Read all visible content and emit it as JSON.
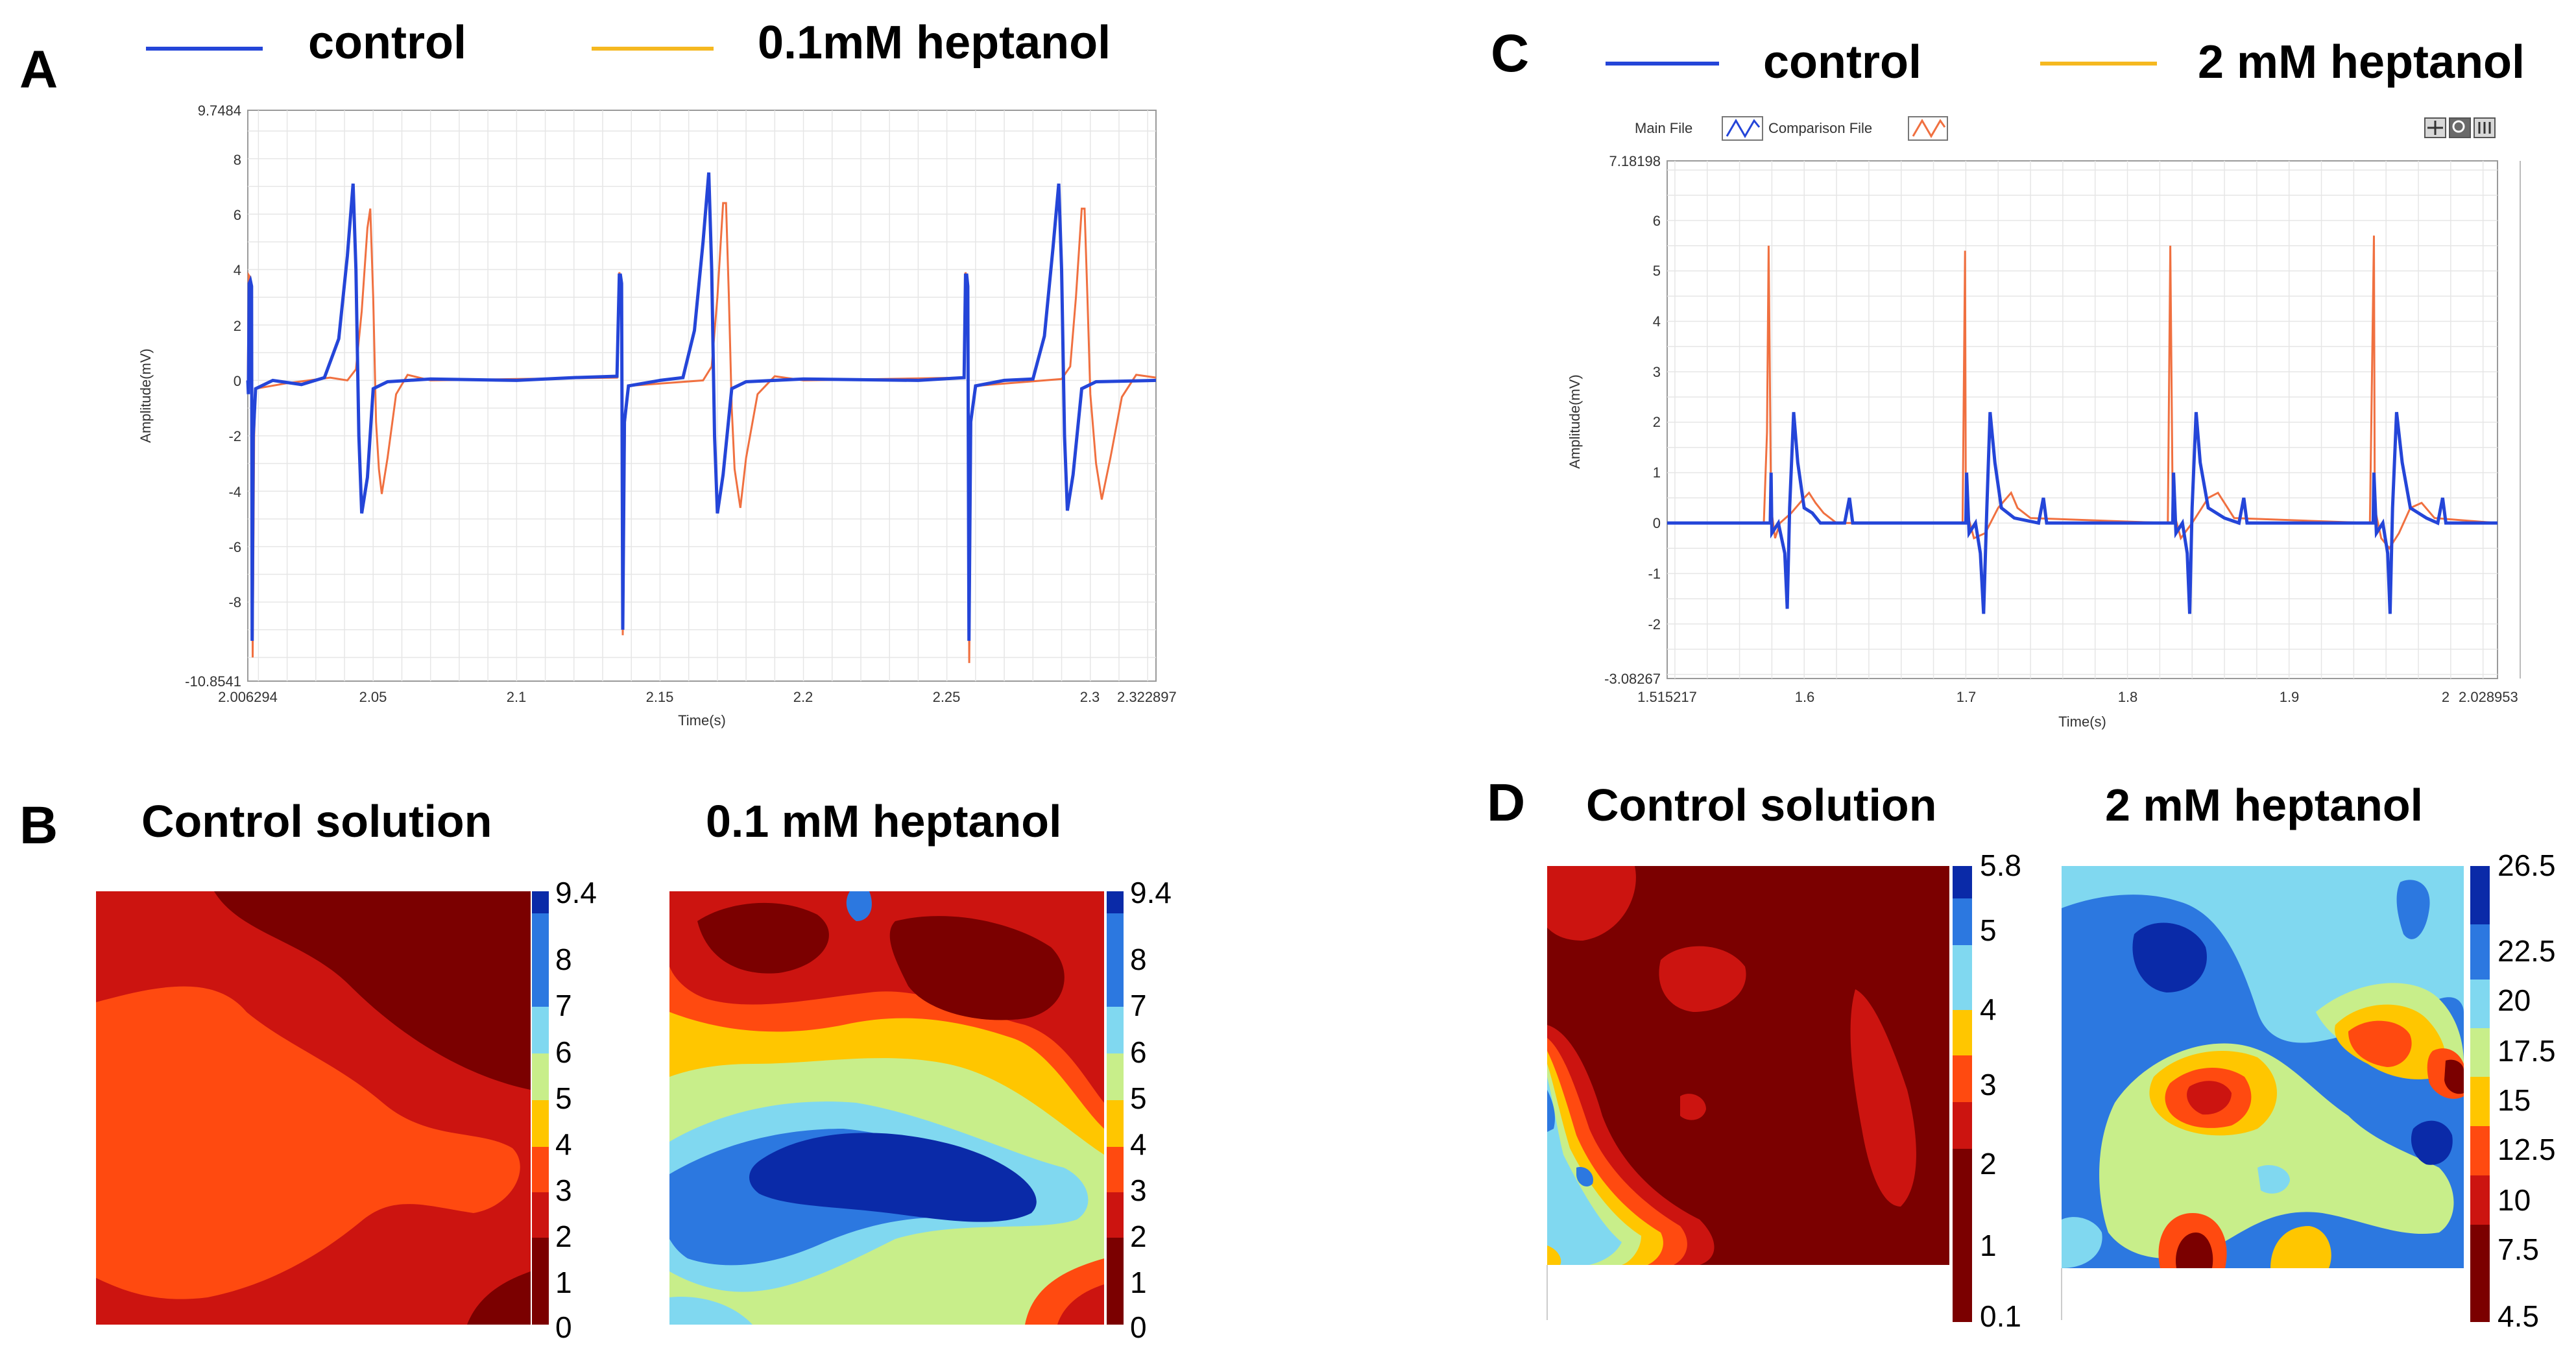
{
  "panels": {
    "A": {
      "letter": "A",
      "legend": [
        {
          "label": "control",
          "color": "#2445d8"
        },
        {
          "label": "0.1mM heptanol",
          "color": "#f5b820"
        }
      ]
    },
    "B": {
      "letter": "B",
      "left_title": "Control solution",
      "right_title": "0.1 mM heptanol",
      "colorbar_ticks": [
        "9.4",
        "8",
        "7",
        "6",
        "5",
        "4",
        "3",
        "2",
        "1",
        "0"
      ]
    },
    "C": {
      "letter": "C",
      "legend": [
        {
          "label": "control",
          "color": "#2445d8"
        },
        {
          "label": "2 mM heptanol",
          "color": "#f5b820"
        }
      ],
      "toolbar": {
        "main_file": "Main File",
        "comparison_file": "Comparison File"
      }
    },
    "D": {
      "letter": "D",
      "left_title": "Control solution",
      "right_title": "2 mM heptanol",
      "left_colorbar_ticks": [
        "5.8",
        "5",
        "4",
        "3",
        "2",
        "1",
        "0.1"
      ],
      "right_colorbar_ticks": [
        "26.5",
        "22.5",
        "20",
        "17.5",
        "15",
        "12.5",
        "10",
        "7.5",
        "4.5"
      ]
    }
  },
  "colors": {
    "control_trace": "#2445d8",
    "heptanol_trace": "#f07040",
    "grid": "#e6e6e6",
    "colormap": [
      "#7b0000",
      "#cc1410",
      "#ff4a10",
      "#ffc600",
      "#c8ee8a",
      "#80d8f0",
      "#2c78e0",
      "#0a2aa8"
    ]
  },
  "chart_data": [
    {
      "type": "line",
      "panel": "A",
      "xlabel": "Time(s)",
      "ylabel": "Amplitude(mV)",
      "xlim": [
        2.006294,
        2.322897
      ],
      "ylim": [
        -10.8541,
        9.7484
      ],
      "x_ticks": [
        "2.006294",
        "2.05",
        "2.1",
        "2.15",
        "2.2",
        "2.25",
        "2.3",
        "2.322897"
      ],
      "y_ticks": [
        "9.7484",
        "8",
        "6",
        "4",
        "2",
        "0",
        "-2",
        "-4",
        "-6",
        "-8",
        "-10.8541"
      ],
      "series": [
        {
          "name": "control",
          "points": [
            [
              2.006294,
              0
            ],
            [
              2.0065,
              -0.5
            ],
            [
              2.0068,
              3.5
            ],
            [
              2.0072,
              3.6
            ],
            [
              2.0076,
              3.4
            ],
            [
              2.0078,
              -9.4
            ],
            [
              2.0082,
              -2
            ],
            [
              2.009,
              -0.3
            ],
            [
              2.015,
              0
            ],
            [
              2.025,
              -0.15
            ],
            [
              2.033,
              0.1
            ],
            [
              2.038,
              1.5
            ],
            [
              2.041,
              4.5
            ],
            [
              2.043,
              7.1
            ],
            [
              2.044,
              4
            ],
            [
              2.045,
              -2
            ],
            [
              2.046,
              -4.8
            ],
            [
              2.048,
              -3.5
            ],
            [
              2.05,
              -0.3
            ],
            [
              2.055,
              -0.05
            ],
            [
              2.07,
              0.05
            ],
            [
              2.1,
              0
            ],
            [
              2.12,
              0.1
            ],
            [
              2.135,
              0.15
            ],
            [
              2.1358,
              3.8
            ],
            [
              2.1362,
              3.8
            ],
            [
              2.1366,
              3.5
            ],
            [
              2.137,
              -9
            ],
            [
              2.1376,
              -1.5
            ],
            [
              2.139,
              -0.2
            ],
            [
              2.15,
              0
            ],
            [
              2.158,
              0.1
            ],
            [
              2.162,
              1.8
            ],
            [
              2.165,
              5
            ],
            [
              2.167,
              7.5
            ],
            [
              2.168,
              4
            ],
            [
              2.169,
              -2
            ],
            [
              2.17,
              -4.8
            ],
            [
              2.172,
              -3.4
            ],
            [
              2.175,
              -0.3
            ],
            [
              2.18,
              -0.05
            ],
            [
              2.2,
              0.05
            ],
            [
              2.24,
              0
            ],
            [
              2.256,
              0.1
            ],
            [
              2.2565,
              3.8
            ],
            [
              2.2569,
              3.8
            ],
            [
              2.2573,
              3.4
            ],
            [
              2.2577,
              -9.4
            ],
            [
              2.2583,
              -1.5
            ],
            [
              2.26,
              -0.2
            ],
            [
              2.27,
              0
            ],
            [
              2.28,
              0.05
            ],
            [
              2.284,
              1.6
            ],
            [
              2.287,
              4.8
            ],
            [
              2.289,
              7.1
            ],
            [
              2.29,
              4
            ],
            [
              2.291,
              -2
            ],
            [
              2.292,
              -4.7
            ],
            [
              2.294,
              -3.4
            ],
            [
              2.297,
              -0.3
            ],
            [
              2.302,
              -0.05
            ],
            [
              2.322897,
              0
            ]
          ]
        },
        {
          "name": "0.1mM heptanol",
          "points": [
            [
              2.006294,
              0
            ],
            [
              2.0066,
              3.8
            ],
            [
              2.0072,
              3.7
            ],
            [
              2.0076,
              3.3
            ],
            [
              2.008,
              -10
            ],
            [
              2.0085,
              -2
            ],
            [
              2.009,
              -0.3
            ],
            [
              2.02,
              -0.1
            ],
            [
              2.035,
              0.1
            ],
            [
              2.041,
              0
            ],
            [
              2.044,
              0.4
            ],
            [
              2.046,
              2.5
            ],
            [
              2.048,
              5.5
            ],
            [
              2.049,
              6.2
            ],
            [
              2.05,
              3
            ],
            [
              2.051,
              -1.5
            ],
            [
              2.052,
              -3.2
            ],
            [
              2.053,
              -4.1
            ],
            [
              2.055,
              -2.8
            ],
            [
              2.058,
              -0.5
            ],
            [
              2.062,
              0.2
            ],
            [
              2.07,
              0
            ],
            [
              2.1,
              0.05
            ],
            [
              2.135,
              0.1
            ],
            [
              2.1358,
              3.9
            ],
            [
              2.1366,
              3.6
            ],
            [
              2.137,
              -9.2
            ],
            [
              2.1378,
              -1.5
            ],
            [
              2.139,
              -0.2
            ],
            [
              2.165,
              0
            ],
            [
              2.168,
              0.5
            ],
            [
              2.17,
              3
            ],
            [
              2.172,
              6.4
            ],
            [
              2.173,
              6.4
            ],
            [
              2.174,
              3
            ],
            [
              2.175,
              -1
            ],
            [
              2.176,
              -3.2
            ],
            [
              2.178,
              -4.6
            ],
            [
              2.18,
              -2.8
            ],
            [
              2.184,
              -0.5
            ],
            [
              2.19,
              0.15
            ],
            [
              2.2,
              0
            ],
            [
              2.256,
              0.1
            ],
            [
              2.2565,
              3.9
            ],
            [
              2.2573,
              3.5
            ],
            [
              2.2578,
              -10.2
            ],
            [
              2.2585,
              -1.5
            ],
            [
              2.26,
              -0.2
            ],
            [
              2.29,
              0.05
            ],
            [
              2.293,
              0.5
            ],
            [
              2.295,
              3
            ],
            [
              2.297,
              6.2
            ],
            [
              2.298,
              6.2
            ],
            [
              2.299,
              3
            ],
            [
              2.3,
              -0.5
            ],
            [
              2.302,
              -3
            ],
            [
              2.304,
              -4.3
            ],
            [
              2.307,
              -2.8
            ],
            [
              2.311,
              -0.6
            ],
            [
              2.316,
              0.2
            ],
            [
              2.322897,
              0.1
            ]
          ]
        }
      ]
    },
    {
      "type": "line",
      "panel": "C",
      "xlabel": "Time(s)",
      "ylabel": "Amplitude(mV)",
      "xlim": [
        1.515217,
        2.028953
      ],
      "ylim": [
        -3.08267,
        7.18198
      ],
      "x_ticks": [
        "1.515217",
        "1.6",
        "1.7",
        "1.8",
        "1.9",
        "2",
        "2.028953"
      ],
      "y_ticks": [
        "7.18198",
        "6",
        "5",
        "4",
        "3",
        "2",
        "1",
        "0",
        "-1",
        "-2",
        "-3.08267"
      ],
      "series": [
        {
          "name": "control",
          "points": [
            [
              1.515217,
              0
            ],
            [
              1.579,
              0
            ],
            [
              1.5795,
              1
            ],
            [
              1.58,
              -0.2
            ],
            [
              1.584,
              0
            ],
            [
              1.588,
              -0.6
            ],
            [
              1.5895,
              -1.7
            ],
            [
              1.591,
              0.3
            ],
            [
              1.5935,
              2.2
            ],
            [
              1.596,
              1.2
            ],
            [
              1.6,
              0.3
            ],
            [
              1.605,
              0.2
            ],
            [
              1.61,
              0
            ],
            [
              1.625,
              0
            ],
            [
              1.628,
              0.5
            ],
            [
              1.63,
              0
            ],
            [
              1.7,
              0
            ],
            [
              1.7005,
              1
            ],
            [
              1.702,
              -0.2
            ],
            [
              1.706,
              0
            ],
            [
              1.709,
              -0.6
            ],
            [
              1.711,
              -1.8
            ],
            [
              1.713,
              0.3
            ],
            [
              1.715,
              2.2
            ],
            [
              1.718,
              1.2
            ],
            [
              1.722,
              0.3
            ],
            [
              1.73,
              0.1
            ],
            [
              1.745,
              0
            ],
            [
              1.748,
              0.5
            ],
            [
              1.75,
              0
            ],
            [
              1.828,
              0
            ],
            [
              1.8285,
              1
            ],
            [
              1.83,
              -0.2
            ],
            [
              1.834,
              0
            ],
            [
              1.837,
              -0.6
            ],
            [
              1.8385,
              -1.8
            ],
            [
              1.84,
              0.3
            ],
            [
              1.8425,
              2.2
            ],
            [
              1.845,
              1.2
            ],
            [
              1.85,
              0.3
            ],
            [
              1.86,
              0.1
            ],
            [
              1.869,
              0
            ],
            [
              1.872,
              0.5
            ],
            [
              1.874,
              0
            ],
            [
              1.952,
              0
            ],
            [
              1.9525,
              1
            ],
            [
              1.954,
              -0.2
            ],
            [
              1.958,
              0
            ],
            [
              1.961,
              -0.6
            ],
            [
              1.9625,
              -1.8
            ],
            [
              1.964,
              0.3
            ],
            [
              1.9665,
              2.2
            ],
            [
              1.97,
              1.2
            ],
            [
              1.975,
              0.3
            ],
            [
              1.985,
              0.1
            ],
            [
              1.992,
              0
            ],
            [
              1.995,
              0.5
            ],
            [
              1.997,
              0
            ],
            [
              2.028953,
              0
            ]
          ]
        },
        {
          "name": "2 mM heptanol",
          "points": [
            [
              1.515217,
              0
            ],
            [
              1.575,
              0
            ],
            [
              1.577,
              1.8
            ],
            [
              1.578,
              5.5
            ],
            [
              1.5795,
              0.3
            ],
            [
              1.582,
              -0.3
            ],
            [
              1.585,
              0
            ],
            [
              1.592,
              0.2
            ],
            [
              1.6,
              0.5
            ],
            [
              1.603,
              0.6
            ],
            [
              1.607,
              0.4
            ],
            [
              1.612,
              0.2
            ],
            [
              1.62,
              0
            ],
            [
              1.698,
              0
            ],
            [
              1.6995,
              5.4
            ],
            [
              1.7,
              0.3
            ],
            [
              1.705,
              -0.3
            ],
            [
              1.712,
              -0.2
            ],
            [
              1.72,
              0.3
            ],
            [
              1.728,
              0.6
            ],
            [
              1.732,
              0.3
            ],
            [
              1.74,
              0.1
            ],
            [
              1.825,
              0
            ],
            [
              1.8265,
              5.5
            ],
            [
              1.828,
              0.3
            ],
            [
              1.833,
              -0.3
            ],
            [
              1.84,
              0
            ],
            [
              1.85,
              0.5
            ],
            [
              1.856,
              0.6
            ],
            [
              1.86,
              0.4
            ],
            [
              1.866,
              0.1
            ],
            [
              1.95,
              0
            ],
            [
              1.9525,
              5.7
            ],
            [
              1.953,
              0.3
            ],
            [
              1.957,
              -0.3
            ],
            [
              1.962,
              -0.5
            ],
            [
              1.968,
              -0.2
            ],
            [
              1.975,
              0.3
            ],
            [
              1.982,
              0.4
            ],
            [
              1.99,
              0.1
            ],
            [
              2.028953,
              0
            ]
          ]
        }
      ]
    },
    {
      "type": "heatmap",
      "panel": "B-left",
      "title": "Control solution",
      "range": [
        0,
        9.4
      ]
    },
    {
      "type": "heatmap",
      "panel": "B-right",
      "title": "0.1 mM heptanol",
      "range": [
        0,
        9.4
      ]
    },
    {
      "type": "heatmap",
      "panel": "D-left",
      "title": "Control solution",
      "range": [
        0.1,
        5.8
      ]
    },
    {
      "type": "heatmap",
      "panel": "D-right",
      "title": "2 mM heptanol",
      "range": [
        4.5,
        26.5
      ]
    }
  ]
}
